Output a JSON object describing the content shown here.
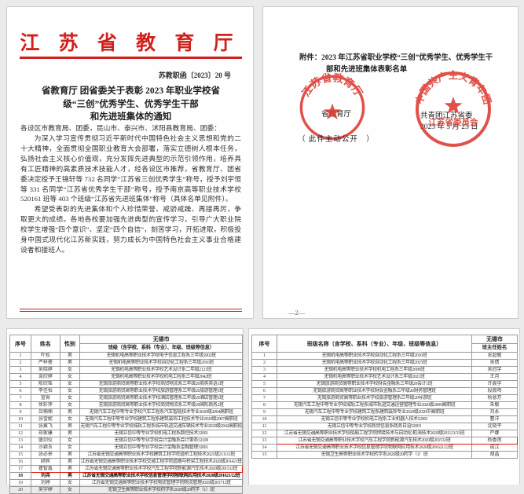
{
  "accent_red": "#d0211c",
  "seal_red": "#dd3a31",
  "page1": {
    "header_title": "江 苏 省 教 育 厅",
    "doc_number": "苏教职函〔2023〕20 号",
    "title_lines": [
      "省教育厅 团省委关于表彰 2023 年职业学校省",
      "级“三创”优秀学生、优秀学生干部",
      "和先进班集体的通知"
    ],
    "paragraphs": [
      "各设区市教育局、团委，昆山市、泰兴市、沭阳县教育局、团委：",
      "为深入学习宣传贯彻习近平新时代中国特色社会主义思想和党的二十大精神，全面贯彻全国职业教育大会部署，落实立德树人根本任务，弘扬社会主义核心价值观，充分发挥先进典型的示范引领作用，培养具有工匠精神的高素质技术技能人才，经各设区市推荐，省教育厅、团省委决定授予王锦轩等 732 名同学“江苏省三创优秀学生”称号，授予刘宇恒等 331 名同学“江苏省优秀学生干部”称号，授予南京高等职业技术学校 520161 班等 403 个班级“江苏省先进班集体”称号（具体名单见附件）。",
      "希望受表彰的先进集体和个人珍惜荣誉、戒骄戒躁、再接再厉，争取更大的成绩。各地各校要加强先进典型的宣传学习，引导广大职业院校学生增强“四个意识”、坚定“四个自信”，刻苦学习，开拓进取，积极投身中国式现代化江苏新实践，努力成长为中国特色社会主义事业合格建设者和接班人。"
    ]
  },
  "page2": {
    "attachment_line1": "附件：2023 年江苏省职业学校“三创”优秀学生、优秀学生干",
    "attachment_line2": "部和先进班集体表彰名单",
    "seal_left": {
      "arc_text": "江苏省教育厅",
      "caption": "省教育厅"
    },
    "seal_right": {
      "arc_text": "中国共产主义青年团",
      "inner_text": "江苏省委员会",
      "caption_org": "共青团江苏省委",
      "caption_date": "2023 年 5 月 25 日"
    },
    "public_note": "（ 此件主动公开　）",
    "page_number": "—2—"
  },
  "table_left": {
    "header": {
      "no": "序号",
      "name": "姓名",
      "gender": "性别",
      "city": "无锡市",
      "cls": "班级（含学校、系科（专业）、年级、班级等信息）"
    },
    "rows": [
      {
        "no": "1",
        "name": "叶松",
        "gender": "男",
        "cls": "无锡机电高等职业技术学校电子信息工程系三年级2002班"
      },
      {
        "no": "2",
        "name": "严梓豪",
        "gender": "男",
        "cls": "无锡机电高等职业技术学校自动化工程系三年级2016班"
      },
      {
        "no": "3",
        "name": "吴晓婷",
        "gender": "女",
        "cls": "无锡机电高等职业技术学校艺术设计系二年级2121班"
      },
      {
        "no": "4",
        "name": "谈欣婷",
        "gender": "女",
        "cls": "无锡机电高等职业技术学校机电工程系三年级2042班"
      },
      {
        "no": "5",
        "name": "陈欣瑶",
        "gender": "女",
        "cls": "无锡旅游商贸高等职业技术学校商贸物流系三年级20商务英语1班"
      },
      {
        "no": "6",
        "name": "李佳怡",
        "gender": "女",
        "cls": "无锡旅游商贸高等职业技术学校旅游管理系三年级20旅游管理3班"
      },
      {
        "no": "7",
        "name": "宣霄",
        "gender": "女",
        "cls": "无锡旅游商贸高等职业技术学校酒店管理系三年级20酒店管理2班"
      },
      {
        "no": "8",
        "name": "徐彩萍",
        "gender": "女",
        "cls": "无锡旅游商贸高等职业技术学校商贸物流系三年级20国际商务2班"
      },
      {
        "no": "9",
        "name": "吕楠楠",
        "gender": "男",
        "cls": "无锡汽车工程中等专业学校汽车工程系汽车智能技术专业2020级2004高职班"
      },
      {
        "no": "10",
        "name": "张雪妮",
        "gender": "女",
        "cls": "无锡汽车工程中等专业学校建筑工程系建筑装饰工程技术专业2020级2007高职班"
      },
      {
        "no": "11",
        "name": "张翼飞",
        "gender": "男",
        "cls": "无锡汽车工程中等专业学校城轨工程系城市轨道交通车辆技术专业2020级2042高职班"
      },
      {
        "no": "12",
        "name": "郑家康",
        "gender": "男",
        "cls": "无锡立信中等专业学校机电工程系数控技术32001"
      },
      {
        "no": "13",
        "name": "盛剑仪",
        "gender": "女",
        "cls": "无锡立信中等专业学校会计金融系会计事务32100"
      },
      {
        "no": "14",
        "name": "沙颖玉",
        "gender": "女",
        "cls": "无锡立信中等专业学校会计金融系金融管理32001"
      },
      {
        "no": "15",
        "name": "张必来",
        "gender": "男",
        "cls": "江苏省无锡交通高等职业技术学校建筑工程学院道桥工程技术2021级211111班"
      },
      {
        "no": "16",
        "name": "顾宾",
        "gender": "男",
        "cls": "江苏省无锡交通高等职业技术学校交通工程学院道路与桥梁工程技术2020级201421班"
      },
      {
        "no": "17",
        "name": "瞿智鑫",
        "gender": "男",
        "cls": "江苏省无锡交通高等职业技术学校汽车工程学院新能源汽车技术2020级201532班",
        "highlighted": true
      },
      {
        "no": "18",
        "name": "刘尧",
        "gender": "男",
        "cls": "江苏省无锡交通高等职业技术学校信息管理学院物联网应用技术2020级201621/22班",
        "emphasis": true
      },
      {
        "no": "19",
        "name": "刘婷",
        "gender": "女",
        "cls": "江苏省无锡交通高等职业技术学校物流管理学院物流管理2020级201712班"
      },
      {
        "no": "20",
        "name": "吴宇婷",
        "gender": "女",
        "cls": "无锡卫生高等职业技术学校药学系2020级20药学（1）班"
      }
    ]
  },
  "table_right": {
    "header": {
      "no": "序号",
      "cls": "班级名称（含学校、系科（专业）、年级、班级等信息）",
      "city": "无锡市",
      "teacher": "班主任姓名"
    },
    "rows": [
      {
        "no": "1",
        "cls": "无锡机电高等职业技术学校自动化工程系三年级2016班",
        "teacher": "张超敏"
      },
      {
        "no": "2",
        "cls": "无锡机电高等职业技术学校自动化工程系三年级2015班",
        "teacher": "吴倩"
      },
      {
        "no": "3",
        "cls": "无锡机电高等职业技术学校机电工程系三年级2009班",
        "teacher": "吴冠宇"
      },
      {
        "no": "4",
        "cls": "无锡机电高等职业技术学校艺术设计系三年级2021班",
        "teacher": "王月"
      },
      {
        "no": "5",
        "cls": "无锡旅游商贸高等职业技术学校财会金融系三年级20会计1班",
        "teacher": "许震宇"
      },
      {
        "no": "6",
        "cls": "无锡旅游商贸高等职业技术学校财会金融系三年级20财务管理班",
        "teacher": "段霞鸣"
      },
      {
        "no": "7",
        "cls": "无锡旅游商贸高等职业技术学校旅游管理系三年级20导游班",
        "teacher": "杨慧芳"
      },
      {
        "no": "8",
        "cls": "无锡汽车工程中等专业学校城轨工程系城市轨道交通运营管理专业2020级2009高职班",
        "teacher": "朱敏"
      },
      {
        "no": "9",
        "cls": "无锡汽车工程中等专业学校建筑工程系建筑装饰专业2020级2020中高职班",
        "teacher": "刘永"
      },
      {
        "no": "10",
        "cls": "无锡立信中等专业学校机电工程系工业机器人技术52001",
        "teacher": "曹洋"
      },
      {
        "no": "11",
        "cls": "无锡立信中等专业学校商贸信息系商务日语52001",
        "teacher": "沈晓平"
      },
      {
        "no": "12",
        "cls": "江苏省无锡交通高等职业技术学校船舶工程学院焊接技术与自动化/航海技术2020级201121/31班",
        "teacher": "严娜"
      },
      {
        "no": "13",
        "cls": "江苏省无锡交通高等职业技术学校汽车工程学院新能源汽车技术2020级201532班",
        "teacher": "杨香莲",
        "highlighted": true
      },
      {
        "no": "14",
        "cls": "江苏省无锡交通高等职业技术学校信息管理学院物联网应用技术2020级201621/22班",
        "teacher": "成江"
      },
      {
        "no": "15",
        "cls": "无锡卫生高等职业技术学校药学系2020级20药学（1）班",
        "teacher": "胡晶"
      }
    ]
  }
}
